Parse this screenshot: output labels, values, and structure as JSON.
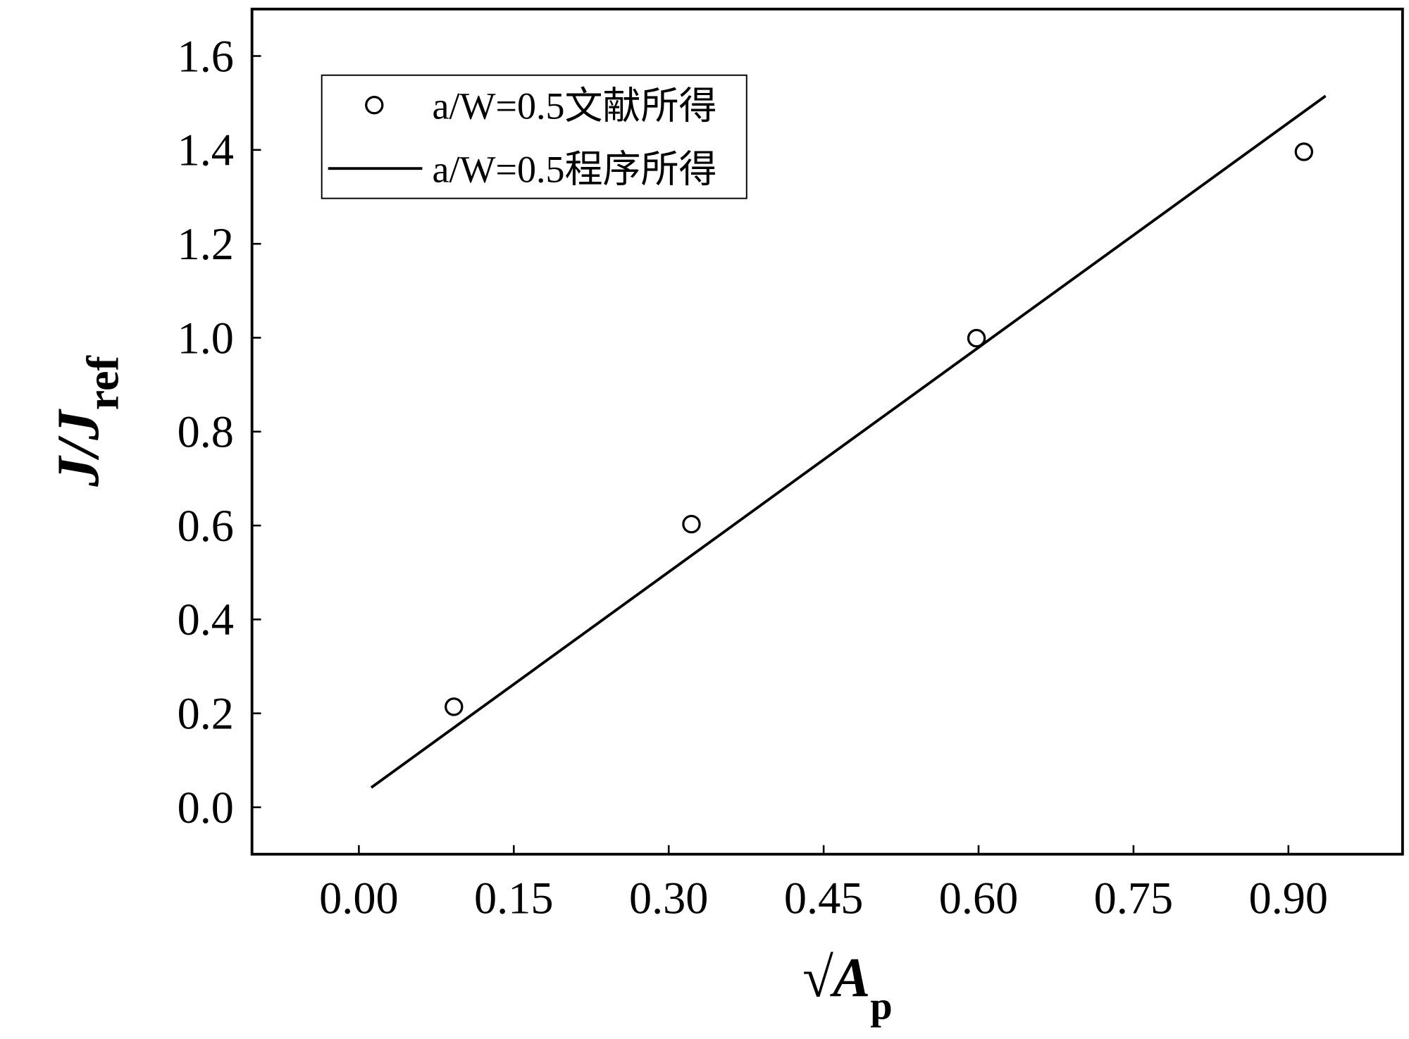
{
  "chart_data": {
    "type": "scatter",
    "xlabel": {
      "main": "√A",
      "sub": "p"
    },
    "ylabel": {
      "main": "J/J",
      "sub": "ref"
    },
    "xlim": [
      -0.1035,
      1.0105
    ],
    "ylim": [
      -0.1,
      1.7
    ],
    "xticks": [
      {
        "value": 0,
        "label": "0.00"
      },
      0.15,
      {
        "value": 0.3,
        "label": "0.30"
      },
      0.45,
      {
        "value": 0.6,
        "label": "0.60"
      },
      0.75,
      {
        "value": 0.9,
        "label": "0.90"
      }
    ],
    "yticks": [
      {
        "value": 0,
        "label": "0.0"
      },
      0.2,
      0.4,
      0.6,
      0.8,
      {
        "value": 1,
        "label": "1.0"
      },
      1.2,
      1.4,
      1.6
    ],
    "grid": false,
    "legend": "upper left",
    "series": [
      {
        "name": "a/W=0.5文献所得",
        "type": "scatter",
        "color": "#000000",
        "x": [
          0.092,
          0.322,
          0.598,
          0.915
        ],
        "values": [
          0.214,
          0.603,
          0.999,
          1.396
        ]
      },
      {
        "name": "a/W=0.5程序所得",
        "type": "line",
        "color": "#000000",
        "x": [
          0.012,
          0.936
        ],
        "values": [
          0.042,
          1.515
        ]
      }
    ]
  }
}
